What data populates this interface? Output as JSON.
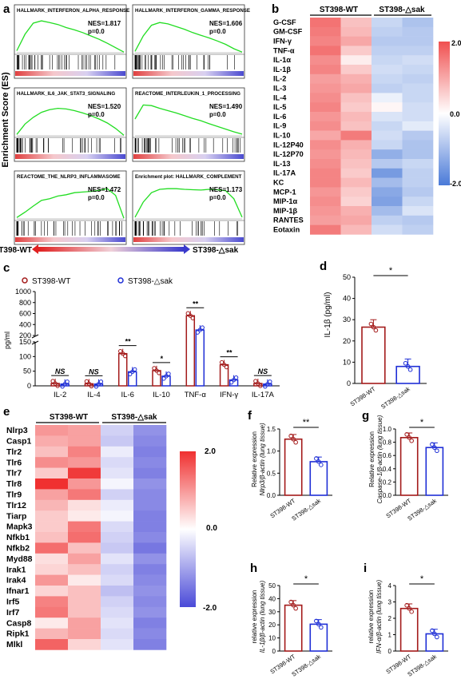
{
  "panel_a": {
    "letter": "a",
    "y_label": "Enrichment Score (ES)",
    "left_label": "ST398-WT",
    "right_label": "ST398-△sak",
    "gsea": [
      {
        "title": "HALLMARK_INTERFERON_ALPHA_RESPONSE",
        "nes": "NES=1.817",
        "p": "p=0.0"
      },
      {
        "title": "HALLMARK_INTERFERON_GAMMA_RESPONSE",
        "nes": "NES=1.606",
        "p": "p=0.0"
      },
      {
        "title": "HALLMARK_IL6_JAK_STAT3_SIGNALING",
        "nes": "NES=1.520",
        "p": "p=0.0"
      },
      {
        "title": "REACTOME_INTERLEUKIN_1_PROCESSING",
        "nes": "NES=1.490",
        "p": "p=0.0"
      },
      {
        "title": "REACTOME_THE_NLRP3_INFLAMMASOME",
        "nes": "NES=1.472",
        "p": "p=0.0"
      },
      {
        "title": "Enrichment plot: HALLMARK_COMPLEMENT",
        "nes": "NES=1.173",
        "p": "p=0.0"
      }
    ]
  },
  "panel_b": {
    "letter": "b",
    "group1": "ST398-WT",
    "group2": "ST398-△sak",
    "scale_max": "2.0",
    "scale_mid": "0.0",
    "scale_min": "-2.0",
    "rows": [
      "G-CSF",
      "GM-CSF",
      "IFN-γ",
      "TNF-α",
      "IL-1α",
      "IL-1β",
      "IL-2",
      "IL-3",
      "IL-4",
      "IL-5",
      "IL-6",
      "IL-9",
      "IL-10",
      "IL-12P40",
      "IL-12P70",
      "IL-13",
      "IL-17A",
      "KC",
      "MCP-1",
      "MIP-1α",
      "MIP-1β",
      "RANTES",
      "Eotaxin"
    ],
    "values": [
      [
        1.6,
        0.7,
        -0.6,
        -0.9
      ],
      [
        1.5,
        0.8,
        -0.7,
        -0.8
      ],
      [
        1.4,
        1.0,
        -0.8,
        -0.8
      ],
      [
        1.6,
        0.6,
        -0.7,
        -0.7
      ],
      [
        1.3,
        0.2,
        -0.6,
        -0.5
      ],
      [
        1.4,
        0.6,
        -0.5,
        -0.6
      ],
      [
        1.1,
        0.9,
        -0.6,
        -0.7
      ],
      [
        1.2,
        1.0,
        -0.7,
        -0.6
      ],
      [
        1.3,
        0.7,
        -0.2,
        -0.6
      ],
      [
        1.4,
        0.6,
        0.1,
        -0.5
      ],
      [
        1.2,
        0.8,
        -0.4,
        -0.5
      ],
      [
        1.3,
        0.7,
        -0.6,
        -0.3
      ],
      [
        1.0,
        1.5,
        -0.5,
        -0.8
      ],
      [
        1.3,
        0.9,
        -0.6,
        -0.9
      ],
      [
        1.2,
        0.8,
        -1.2,
        -0.9
      ],
      [
        1.3,
        0.7,
        -0.8,
        -0.6
      ],
      [
        1.4,
        0.6,
        -1.5,
        -0.7
      ],
      [
        1.4,
        0.8,
        -1.0,
        -0.7
      ],
      [
        1.2,
        0.6,
        -1.3,
        -0.8
      ],
      [
        1.3,
        0.5,
        -1.4,
        -0.6
      ],
      [
        1.2,
        0.9,
        -1.0,
        -0.4
      ],
      [
        1.1,
        1.0,
        -0.7,
        -0.8
      ],
      [
        1.5,
        0.8,
        -0.5,
        -0.7
      ]
    ]
  },
  "panel_c": {
    "letter": "c",
    "legend_wt": "ST398-WT",
    "legend_sak": "ST398-△sak",
    "ylabel": "pg/ml",
    "upper_ticks": [
      "1000",
      "800",
      "600",
      "400",
      "200"
    ],
    "lower_ticks": [
      "150",
      "100",
      "50",
      "0"
    ],
    "categories": [
      "IL-2",
      "IL-4",
      "IL-6",
      "IL-10",
      "TNF-α",
      "IFN-γ",
      "IL-17A"
    ],
    "sig": [
      "NS",
      "NS",
      "**",
      "*",
      "**",
      "**",
      "NS"
    ],
    "chart_data": {
      "type": "bar",
      "categories": [
        "IL-2",
        "IL-4",
        "IL-6",
        "IL-10",
        "TNF-α",
        "IFN-γ",
        "IL-17A"
      ],
      "series": [
        {
          "name": "ST398-WT",
          "values": [
            8,
            7,
            110,
            52,
            560,
            72,
            8
          ]
        },
        {
          "name": "ST398-△sak",
          "values": [
            6,
            6,
            48,
            33,
            300,
            20,
            6
          ]
        }
      ],
      "ylabel": "pg/ml"
    }
  },
  "panel_d": {
    "letter": "d",
    "ylabel": "IL-1β (pg/ml)",
    "ticks": [
      "50",
      "40",
      "30",
      "20",
      "10",
      "0"
    ],
    "sig": "*",
    "categories": [
      "ST398-WT",
      "ST398-△sak"
    ],
    "chart_data": {
      "type": "bar",
      "categories": [
        "ST398-WT",
        "ST398-△sak"
      ],
      "values": [
        26.5,
        8
      ],
      "ylim": [
        0,
        50
      ],
      "ylabel": "IL-1β (pg/ml)"
    }
  },
  "panel_e": {
    "letter": "e",
    "group1": "ST398-WT",
    "group2": "ST398-△sak",
    "scale_max": "2.0",
    "scale_mid": "0.0",
    "scale_min": "-2.0",
    "rows": [
      "Nlrp3",
      "Casp1",
      "Tlr2",
      "Tlr6",
      "Tlr7",
      "Tlr8",
      "Tlr9",
      "Tlr12",
      "Tiarp",
      "Mapk3",
      "Nfkb1",
      "Nfkb2",
      "Myd88",
      "Irak1",
      "Irak4",
      "Ifnar1",
      "Irf5",
      "Irf7",
      "Casp8",
      "Ripk1",
      "Mlkl"
    ],
    "values": [
      [
        1.0,
        0.9,
        -0.5,
        -1.2
      ],
      [
        0.8,
        0.9,
        -0.6,
        -1.3
      ],
      [
        0.6,
        1.2,
        -0.2,
        -1.4
      ],
      [
        1.1,
        1.0,
        -0.4,
        -1.3
      ],
      [
        0.5,
        1.9,
        -0.3,
        -1.4
      ],
      [
        2.0,
        1.0,
        -0.1,
        -1.2
      ],
      [
        0.9,
        1.3,
        -0.5,
        -1.3
      ],
      [
        0.7,
        0.3,
        -0.2,
        -1.3
      ],
      [
        0.5,
        0.2,
        -0.1,
        -1.4
      ],
      [
        0.5,
        1.3,
        -0.4,
        -1.4
      ],
      [
        0.6,
        1.4,
        -0.5,
        -1.3
      ],
      [
        1.4,
        0.6,
        -0.6,
        -1.5
      ],
      [
        0.3,
        0.9,
        -0.3,
        -1.2
      ],
      [
        0.4,
        0.6,
        -0.5,
        -1.4
      ],
      [
        1.0,
        0.2,
        -0.4,
        -1.3
      ],
      [
        0.4,
        0.6,
        -0.7,
        -1.2
      ],
      [
        1.2,
        0.6,
        -0.5,
        -1.3
      ],
      [
        1.3,
        0.6,
        -0.4,
        -1.2
      ],
      [
        0.2,
        0.9,
        -0.3,
        -1.4
      ],
      [
        0.7,
        0.9,
        -0.4,
        -1.3
      ],
      [
        1.5,
        0.4,
        -0.3,
        -1.4
      ]
    ]
  },
  "panel_f": {
    "letter": "f",
    "ylabel1": "Relative expression",
    "ylabel2": "Nlrp3/β-actin (lung tissue)",
    "ticks": [
      "1.5",
      "1.0",
      "0.5",
      "0.0"
    ],
    "sig": "**",
    "categories": [
      "ST398-WT",
      "ST398-△sak"
    ],
    "chart_data": {
      "type": "bar",
      "categories": [
        "ST398-WT",
        "ST398-△sak"
      ],
      "values": [
        1.27,
        0.76
      ],
      "ylim": [
        0,
        1.5
      ]
    }
  },
  "panel_g": {
    "letter": "g",
    "ylabel1": "Relative expression",
    "ylabel2": "Caspase-1/β-actin (lung tissue)",
    "ticks": [
      "1.0",
      "0.8",
      "0.6",
      "0.4",
      "0.2",
      "0.0"
    ],
    "sig": "*",
    "categories": [
      "ST398-WT",
      "ST398-△sak"
    ],
    "chart_data": {
      "type": "bar",
      "categories": [
        "ST398-WT",
        "ST398-△sak"
      ],
      "values": [
        0.87,
        0.72
      ],
      "ylim": [
        0,
        1.0
      ]
    }
  },
  "panel_h": {
    "letter": "h",
    "ylabel1": "relative expression",
    "ylabel2": "IL-1β/β-actin (lung tissue)",
    "ticks": [
      "50",
      "40",
      "30",
      "20",
      "10",
      "0"
    ],
    "sig": "*",
    "categories": [
      "ST398-WT",
      "ST398-△sak"
    ],
    "chart_data": {
      "type": "bar",
      "categories": [
        "ST398-WT",
        "ST398-△sak"
      ],
      "values": [
        35,
        20.5
      ],
      "ylim": [
        0,
        50
      ]
    }
  },
  "panel_i": {
    "letter": "i",
    "ylabel1": "relative expression",
    "ylabel2": "IFN-α/β-actin (lung tissue)",
    "ticks": [
      "4",
      "3",
      "2",
      "1",
      "0"
    ],
    "sig": "*",
    "categories": [
      "ST398-WT",
      "ST398-△sak"
    ],
    "chart_data": {
      "type": "bar",
      "categories": [
        "ST398-WT",
        "ST398-△sak"
      ],
      "values": [
        2.6,
        1.05
      ],
      "ylim": [
        0,
        4
      ]
    }
  },
  "colors": {
    "wt": "#a31a1a",
    "sak": "#1f2fd6",
    "gsea_line": "#22dd22",
    "hot": "#f03030",
    "cold": "#4a4ad8"
  }
}
